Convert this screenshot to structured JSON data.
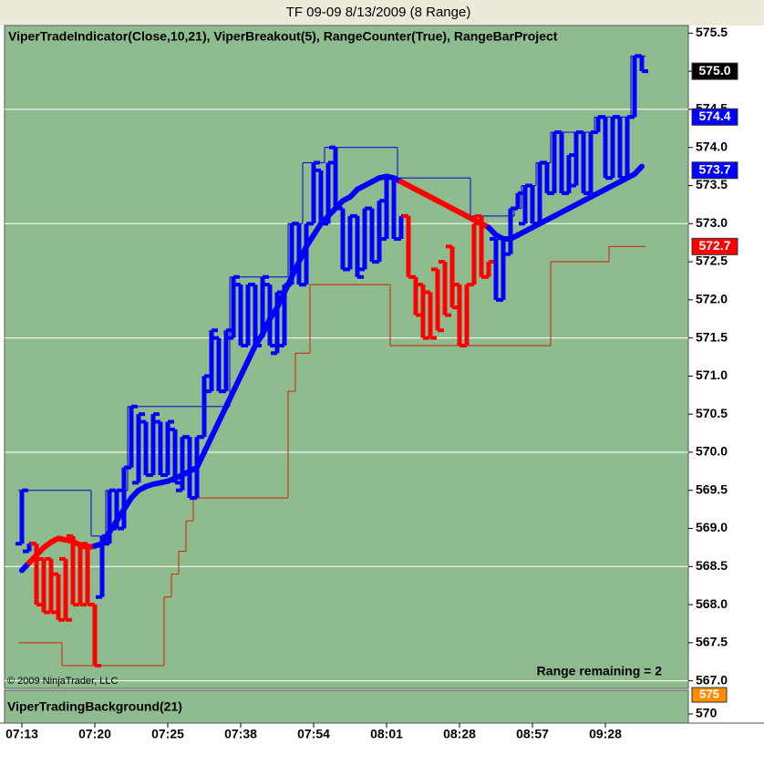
{
  "chart_data": {
    "type": "range-bar",
    "title": "TF 09-09  8/13/2009 (8 Range)",
    "subtitle": "ViperTradeIndicator(Close,10,21),  ViperBreakout(5),  RangeCounter(True),  RangeBarProject",
    "copyright": "© 2009 NinjaTrader, LLC",
    "note": "Range remaining = 2",
    "background": "#8fbc8f",
    "categories": [
      "07:13",
      null,
      null,
      null,
      null,
      null,
      null,
      null,
      null,
      null,
      "07:20",
      null,
      null,
      null,
      null,
      null,
      null,
      null,
      null,
      null,
      "07:25",
      null,
      null,
      null,
      null,
      null,
      null,
      null,
      null,
      null,
      "07:38",
      null,
      null,
      null,
      null,
      null,
      null,
      null,
      null,
      null,
      "07:54",
      null,
      null,
      null,
      null,
      null,
      null,
      null,
      null,
      null,
      "08:01",
      null,
      null,
      null,
      null,
      null,
      null,
      null,
      null,
      null,
      "08:28",
      null,
      null,
      null,
      null,
      null,
      null,
      null,
      null,
      null,
      "08:57",
      null,
      null,
      null,
      null,
      null,
      null,
      null,
      null,
      null,
      "09:28",
      null,
      null,
      null,
      null,
      null
    ],
    "open": [
      568.8,
      568.7,
      568.8,
      568.6,
      568.6,
      568.4,
      568.6,
      568.9,
      568.8,
      568.8,
      568.0,
      568.1,
      568.8,
      569.0,
      569.0,
      569.8,
      569.6,
      570.4,
      569.7,
      570.4,
      569.7,
      570.3,
      569.5,
      570.2,
      569.4,
      570.2,
      570.8,
      571.5,
      570.8,
      571.5,
      572.2,
      571.4,
      572.2,
      571.5,
      572.2,
      571.3,
      571.4,
      572.2,
      573.0,
      572.2,
      573.0,
      573.7,
      573.0,
      574.0,
      573.2,
      572.4,
      573.1,
      572.4,
      573.2,
      572.5,
      572.8,
      573.6,
      572.8,
      573.1,
      572.3,
      572.2,
      572.1,
      572.4,
      572.5,
      572.7,
      572.2,
      571.4,
      572.2,
      573.1,
      572.3,
      572.8,
      572.0,
      572.6,
      573.2,
      573.0,
      573.5,
      573.0,
      573.8,
      573.4,
      574.2,
      573.4,
      573.5,
      574.2,
      573.4,
      574.2,
      574.4,
      573.6,
      574.4,
      573.6,
      574.4,
      575.2
    ],
    "close": [
      569.5,
      568.8,
      568.0,
      567.9,
      567.9,
      567.8,
      567.8,
      568.0,
      568.0,
      568.0,
      567.2,
      568.9,
      569.5,
      569.5,
      569.8,
      570.6,
      570.5,
      569.7,
      570.5,
      569.7,
      570.4,
      569.6,
      570.2,
      569.4,
      570.2,
      571.0,
      571.6,
      570.8,
      571.6,
      572.3,
      571.4,
      572.2,
      571.4,
      572.3,
      571.4,
      572.1,
      572.2,
      573.0,
      572.2,
      573.0,
      573.8,
      573.0,
      573.8,
      573.2,
      572.4,
      573.1,
      572.3,
      573.2,
      572.5,
      573.3,
      573.6,
      572.8,
      573.1,
      572.3,
      571.8,
      571.5,
      571.5,
      571.6,
      571.8,
      571.9,
      571.4,
      572.2,
      573.0,
      572.3,
      572.5,
      572.0,
      572.8,
      573.2,
      573.4,
      573.5,
      573.0,
      573.8,
      573.4,
      574.2,
      573.4,
      573.9,
      574.2,
      573.4,
      574.2,
      574.4,
      573.6,
      574.4,
      573.6,
      574.4,
      575.2,
      575.0
    ],
    "bar_colors": [
      "#0000ff",
      "#0000ff",
      "#ff0000",
      "#ff0000",
      "#ff0000",
      "#ff0000",
      "#ff0000",
      "#ff0000",
      "#ff0000",
      "#ff0000",
      "#ff0000",
      "#0000ff",
      "#0000ff",
      "#0000ff",
      "#0000ff",
      "#0000ff",
      "#0000ff",
      "#0000ff",
      "#0000ff",
      "#0000ff",
      "#0000ff",
      "#0000ff",
      "#0000ff",
      "#0000ff",
      "#0000ff",
      "#0000ff",
      "#0000ff",
      "#0000ff",
      "#0000ff",
      "#0000ff",
      "#0000ff",
      "#0000ff",
      "#0000ff",
      "#0000ff",
      "#0000ff",
      "#0000ff",
      "#0000ff",
      "#0000ff",
      "#0000ff",
      "#0000ff",
      "#0000ff",
      "#0000ff",
      "#0000ff",
      "#0000ff",
      "#0000ff",
      "#0000ff",
      "#0000ff",
      "#0000ff",
      "#0000ff",
      "#0000ff",
      "#0000ff",
      "#0000ff",
      "#0000ff",
      "#ff0000",
      "#ff0000",
      "#ff0000",
      "#ff0000",
      "#ff0000",
      "#ff0000",
      "#ff0000",
      "#ff0000",
      "#ff0000",
      "#ff0000",
      "#ff0000",
      "#ff0000",
      "#0000ff",
      "#0000ff",
      "#0000ff",
      "#0000ff",
      "#0000ff",
      "#0000ff",
      "#0000ff",
      "#0000ff",
      "#0000ff",
      "#0000ff",
      "#0000ff",
      "#0000ff",
      "#0000ff",
      "#0000ff",
      "#0000ff",
      "#0000ff",
      "#0000ff",
      "#0000ff",
      "#0000ff",
      "#0000ff",
      "#0000ff"
    ],
    "ma": {
      "values": [
        568.45,
        568.55,
        568.65,
        568.75,
        568.82,
        568.87,
        568.85,
        568.83,
        568.78,
        568.75,
        568.77,
        568.8,
        568.95,
        569.1,
        569.25,
        569.4,
        569.5,
        569.55,
        569.58,
        569.6,
        569.62,
        569.66,
        569.7,
        569.75,
        569.8,
        570.0,
        570.2,
        570.4,
        570.6,
        570.8,
        571.0,
        571.2,
        571.4,
        571.55,
        571.75,
        571.9,
        572.1,
        572.3,
        572.5,
        572.7,
        572.85,
        573.0,
        573.1,
        573.2,
        573.3,
        573.35,
        573.45,
        573.5,
        573.55,
        573.6,
        573.62,
        573.6,
        573.55,
        573.5,
        573.45,
        573.4,
        573.35,
        573.3,
        573.25,
        573.2,
        573.15,
        573.1,
        573.05,
        573.0,
        572.95,
        572.85,
        572.8,
        572.8,
        572.85,
        572.9,
        572.95,
        573.0,
        573.05,
        573.1,
        573.15,
        573.2,
        573.25,
        573.3,
        573.35,
        573.4,
        573.45,
        573.5,
        573.55,
        573.6,
        573.65,
        573.75
      ]
    },
    "upper": {
      "color": "#0000cc",
      "values": [
        569.5,
        569.5,
        569.5,
        569.5,
        569.5,
        569.5,
        569.5,
        569.5,
        569.5,
        569.5,
        568.9,
        568.9,
        569.5,
        569.5,
        569.5,
        570.6,
        570.6,
        570.6,
        570.6,
        570.6,
        570.6,
        570.6,
        570.6,
        570.6,
        570.6,
        570.6,
        570.6,
        570.6,
        570.6,
        572.3,
        572.3,
        572.3,
        572.3,
        572.3,
        572.3,
        572.3,
        572.3,
        573.0,
        573.0,
        573.8,
        573.8,
        573.8,
        574.0,
        574.0,
        574.0,
        574.0,
        574.0,
        574.0,
        574.0,
        574.0,
        574.0,
        574.0,
        573.6,
        573.6,
        573.6,
        573.6,
        573.6,
        573.6,
        573.6,
        573.6,
        573.6,
        573.6,
        573.1,
        573.1,
        573.1,
        573.1,
        573.1,
        573.1,
        573.2,
        573.5,
        573.5,
        573.8,
        573.8,
        574.2,
        574.2,
        574.2,
        574.2,
        574.2,
        574.2,
        574.4,
        574.4,
        574.4,
        574.4,
        574.4,
        575.2,
        575.2
      ]
    },
    "lower": {
      "color": "#cc2200",
      "values": [
        567.5,
        567.5,
        567.5,
        567.5,
        567.5,
        567.5,
        567.2,
        567.2,
        567.2,
        567.2,
        567.2,
        567.2,
        567.2,
        567.2,
        567.2,
        567.2,
        567.2,
        567.2,
        567.2,
        567.2,
        568.1,
        568.4,
        568.7,
        569.1,
        569.4,
        569.4,
        569.4,
        569.4,
        569.4,
        569.4,
        569.4,
        569.4,
        569.4,
        569.4,
        569.4,
        569.4,
        569.4,
        570.8,
        571.3,
        571.3,
        572.2,
        572.2,
        572.2,
        572.2,
        572.2,
        572.2,
        572.2,
        572.2,
        572.2,
        572.2,
        572.2,
        571.4,
        571.4,
        571.4,
        571.4,
        571.4,
        571.4,
        571.4,
        571.4,
        571.4,
        571.4,
        571.4,
        571.4,
        571.4,
        571.4,
        571.4,
        571.4,
        571.4,
        571.4,
        571.4,
        571.4,
        571.4,
        571.4,
        572.5,
        572.5,
        572.5,
        572.5,
        572.5,
        572.5,
        572.5,
        572.5,
        572.7,
        572.7,
        572.7,
        572.7,
        572.7
      ]
    },
    "ylim": [
      566.9,
      575.6
    ],
    "yticks": [
      {
        "value": 567,
        "label": "567.0"
      },
      567.5,
      {
        "value": 568,
        "label": "568.0"
      },
      568.5,
      {
        "value": 569,
        "label": "569.0"
      },
      569.5,
      {
        "value": 570,
        "label": "570.0"
      },
      570.5,
      {
        "value": 571,
        "label": "571.0"
      },
      571.5,
      {
        "value": 572,
        "label": "572.0"
      },
      572.5,
      {
        "value": 573,
        "label": "573.0"
      },
      573.5,
      {
        "value": 574,
        "label": "574.0"
      },
      574.5,
      {
        "value": 575,
        "label": "575.0"
      },
      575.5
    ],
    "grid": [
      567,
      568.5,
      570,
      571.5,
      573,
      574.5
    ],
    "price_markers": [
      {
        "value": 575.0,
        "label": "575.0",
        "color": "#000000"
      },
      {
        "value": 574.4,
        "label": "574.4",
        "color": "#0000ff"
      },
      {
        "value": 573.7,
        "label": "573.7",
        "color": "#0000ff"
      },
      {
        "value": 572.7,
        "label": "572.7",
        "color": "#ff0000"
      }
    ],
    "indicator_pane": {
      "title": "ViperTradingBackground(21)",
      "ylim": [
        567.6,
        576.2
      ],
      "yticks": [
        570
      ],
      "marker": {
        "value": 575,
        "color": "#ff8c00"
      }
    }
  }
}
